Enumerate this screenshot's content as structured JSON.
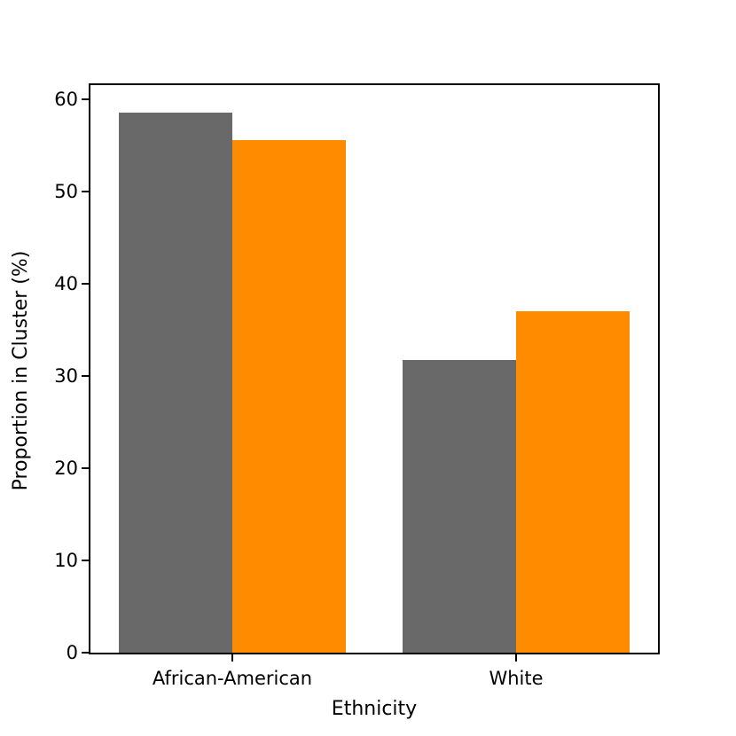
{
  "chart_data": {
    "type": "bar",
    "categories": [
      "African-American",
      "White"
    ],
    "series": [
      {
        "name": "gray",
        "color": "#696969",
        "values": [
          58.5,
          31.7
        ]
      },
      {
        "name": "orange",
        "color": "#ff8c00",
        "values": [
          55.5,
          37.0
        ]
      }
    ],
    "title": "",
    "xlabel": "Ethnicity",
    "ylabel": "Proportion in Cluster (%)",
    "ylim": [
      0,
      61.5
    ],
    "yticks": [
      0,
      10,
      20,
      30,
      40,
      50,
      60
    ],
    "grid": false,
    "legend": null
  }
}
